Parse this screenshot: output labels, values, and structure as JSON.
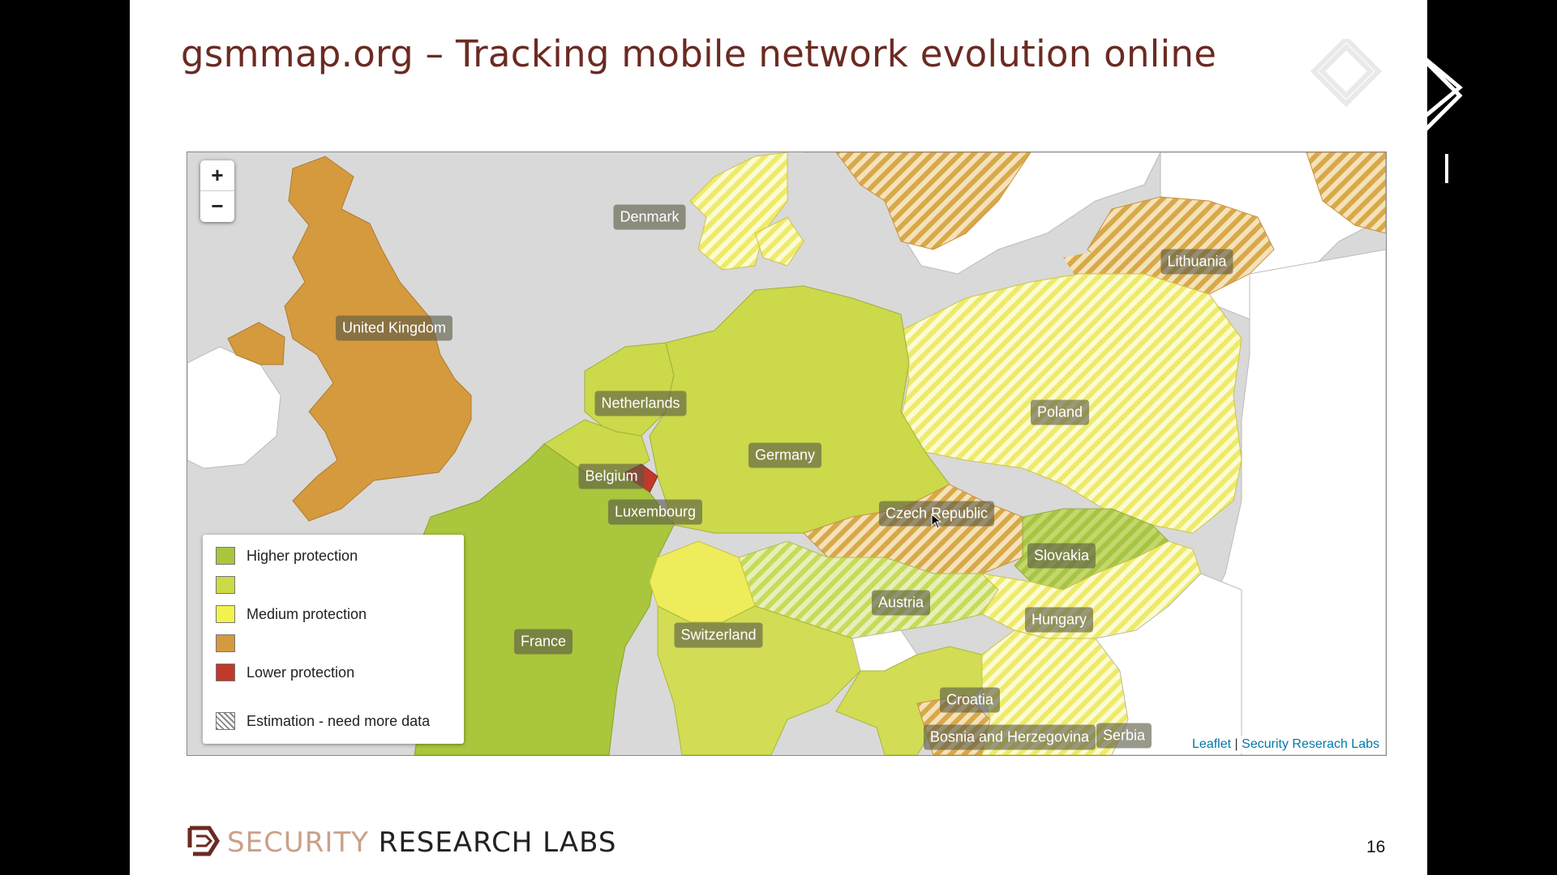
{
  "slide": {
    "title": "gsmmap.org – Tracking mobile network evolution online",
    "page_number": "16",
    "brand_part1": "SECURITY",
    "brand_part2": "RESEARCH LABS"
  },
  "map": {
    "zoom_in_label": "+",
    "zoom_out_label": "−",
    "countries": [
      {
        "name": "Denmark"
      },
      {
        "name": "Lithuania"
      },
      {
        "name": "United Kingdom"
      },
      {
        "name": "Netherlands"
      },
      {
        "name": "Poland"
      },
      {
        "name": "Germany"
      },
      {
        "name": "Belgium"
      },
      {
        "name": "Luxembourg"
      },
      {
        "name": "Czech Republic"
      },
      {
        "name": "Slovakia"
      },
      {
        "name": "Austria"
      },
      {
        "name": "Hungary"
      },
      {
        "name": "France"
      },
      {
        "name": "Switzerland"
      },
      {
        "name": "Croatia"
      },
      {
        "name": "Bosnia and Herzegovina"
      },
      {
        "name": "Serbia"
      }
    ],
    "legend": [
      {
        "label": "Higher protection",
        "color": "#a9c63c"
      },
      {
        "label": "",
        "color": "#ccdb45"
      },
      {
        "label": "Medium protection",
        "color": "#f2f24c"
      },
      {
        "label": "",
        "color": "#d59a3e"
      },
      {
        "label": "Lower protection",
        "color": "#c0392b"
      },
      {
        "label": "Estimation - need more data",
        "color": "hatched"
      }
    ],
    "attribution": {
      "leaflet": "Leaflet",
      "separator": "|",
      "source": "Security Reserach Labs"
    }
  },
  "colors": {
    "title": "#6b2a22",
    "higher": "#a9c63c",
    "medium": "#f2f24c",
    "orange": "#d59a3e",
    "lower": "#c0392b"
  }
}
